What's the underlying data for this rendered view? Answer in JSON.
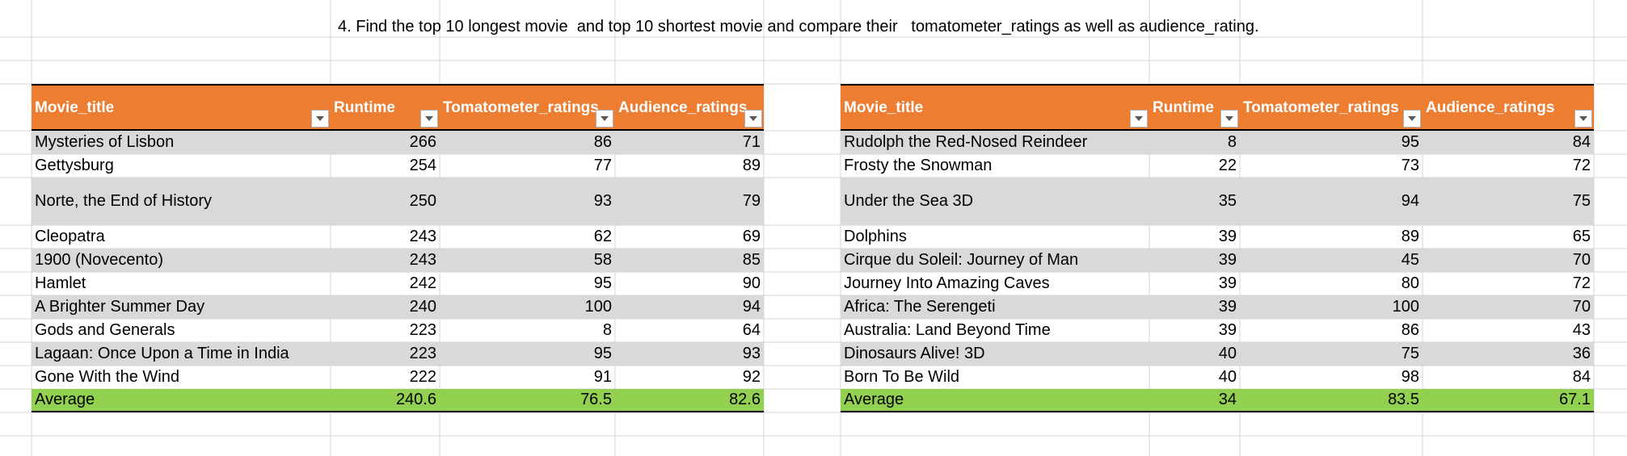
{
  "question": "4. Find the top 10 longest movie  and top 10 shortest movie and compare their   tomatometer_ratings as well as audience_rating.",
  "colors": {
    "header": "#ed7d31",
    "band": "#d9d9d9",
    "average": "#92d050",
    "gridline": "#d4d4d4"
  },
  "tables": [
    {
      "headers": [
        "Movie_title",
        "Runtime",
        "Tomatometer_ratings",
        "Audience_ratings"
      ],
      "filter_icon": "dropdown-arrow-icon",
      "rows": [
        [
          "Mysteries of Lisbon",
          "266",
          "86",
          "71"
        ],
        [
          "Gettysburg",
          "254",
          "77",
          "89"
        ],
        [
          "Norte, the End of History",
          "250",
          "93",
          "79"
        ],
        [
          "Cleopatra",
          "243",
          "62",
          "69"
        ],
        [
          "1900 (Novecento)",
          "243",
          "58",
          "85"
        ],
        [
          "Hamlet",
          "242",
          "95",
          "90"
        ],
        [
          "A Brighter Summer Day",
          "240",
          "100",
          "94"
        ],
        [
          "Gods and Generals",
          "223",
          "8",
          "64"
        ],
        [
          "Lagaan: Once Upon a Time in India",
          "223",
          "95",
          "93"
        ],
        [
          "Gone With the Wind",
          "222",
          "91",
          "92"
        ]
      ],
      "average": [
        "Average",
        "240.6",
        "76.5",
        "82.6"
      ]
    },
    {
      "headers": [
        "Movie_title",
        "Runtime",
        "Tomatometer_ratings",
        "Audience_ratings"
      ],
      "filter_icon": "dropdown-arrow-icon",
      "rows": [
        [
          "Rudolph the Red-Nosed Reindeer",
          "8",
          "95",
          "84"
        ],
        [
          "Frosty the Snowman",
          "22",
          "73",
          "72"
        ],
        [
          "Under the Sea 3D",
          "35",
          "94",
          "75"
        ],
        [
          "Dolphins",
          "39",
          "89",
          "65"
        ],
        [
          "Cirque du Soleil: Journey of Man",
          "39",
          "45",
          "70"
        ],
        [
          "Journey Into Amazing Caves",
          "39",
          "80",
          "72"
        ],
        [
          "Africa: The Serengeti",
          "39",
          "100",
          "70"
        ],
        [
          "Australia: Land Beyond Time",
          "39",
          "86",
          "43"
        ],
        [
          "Dinosaurs Alive! 3D",
          "40",
          "75",
          "36"
        ],
        [
          "Born To Be Wild",
          "40",
          "98",
          "84"
        ]
      ],
      "average": [
        "Average",
        "34",
        "83.5",
        "67.1"
      ]
    }
  ]
}
